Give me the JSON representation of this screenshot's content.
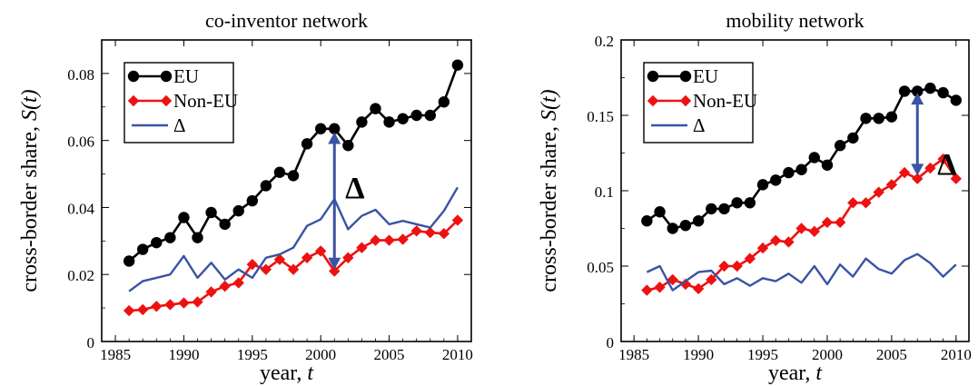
{
  "chart_data": [
    {
      "type": "line",
      "title": "co-inventor network",
      "xlabel_text": "year, ",
      "xlabel_var": "t",
      "ylabel_text": "cross-border share, ",
      "ylabel_var": "S(t)",
      "xlim": [
        1984,
        2011
      ],
      "ylim": [
        0,
        0.09
      ],
      "xticks": [
        1985,
        1990,
        1995,
        2000,
        2005,
        2010
      ],
      "xtick_labels": [
        "1985",
        "1990",
        "1995",
        "2000",
        "2005",
        "2010"
      ],
      "yticks": [
        0,
        0.02,
        0.04,
        0.06,
        0.08
      ],
      "ytick_labels": [
        "0",
        "0.02",
        "0.04",
        "0.06",
        "0.08"
      ],
      "grid": false,
      "legend": "top-left",
      "x": [
        1986,
        1987,
        1988,
        1989,
        1990,
        1991,
        1992,
        1993,
        1994,
        1995,
        1996,
        1997,
        1998,
        1999,
        2000,
        2001,
        2002,
        2003,
        2004,
        2005,
        2006,
        2007,
        2008,
        2009,
        2010
      ],
      "series": [
        {
          "name": "EU",
          "color": "#000000",
          "marker": "circle",
          "values": [
            0.024,
            0.0275,
            0.0295,
            0.031,
            0.037,
            0.031,
            0.0385,
            0.035,
            0.039,
            0.042,
            0.0465,
            0.0505,
            0.0495,
            0.059,
            0.0635,
            0.0635,
            0.0585,
            0.0655,
            0.0695,
            0.0655,
            0.0665,
            0.0675,
            0.0675,
            0.0715,
            0.0825
          ]
        },
        {
          "name": "Non-EU",
          "color": "#ee1111",
          "marker": "diamond",
          "values": [
            0.0092,
            0.0095,
            0.0105,
            0.011,
            0.0115,
            0.0118,
            0.0148,
            0.0165,
            0.0175,
            0.023,
            0.0215,
            0.0245,
            0.0215,
            0.025,
            0.027,
            0.021,
            0.025,
            0.028,
            0.0302,
            0.0302,
            0.0305,
            0.033,
            0.0325,
            0.0322,
            0.0362
          ]
        },
        {
          "name": "Δ",
          "color": "#3a53a4",
          "marker": "none",
          "values": [
            0.015,
            0.018,
            0.019,
            0.02,
            0.0255,
            0.019,
            0.0235,
            0.0185,
            0.0215,
            0.019,
            0.025,
            0.026,
            0.028,
            0.0345,
            0.0365,
            0.0425,
            0.0335,
            0.0375,
            0.0393,
            0.035,
            0.036,
            0.035,
            0.034,
            0.039,
            0.046
          ]
        }
      ],
      "annotation": {
        "label": "Δ",
        "x": 2001,
        "y_top": 0.0625,
        "y_bottom": 0.0215
      }
    },
    {
      "type": "line",
      "title": "mobility network",
      "xlabel_text": "year, ",
      "xlabel_var": "t",
      "ylabel_text": "cross-border share, ",
      "ylabel_var": "S(t)",
      "xlim": [
        1984,
        2011
      ],
      "ylim": [
        0,
        0.2
      ],
      "xticks": [
        1985,
        1990,
        1995,
        2000,
        2005,
        2010
      ],
      "xtick_labels": [
        "1985",
        "1990",
        "1995",
        "2000",
        "2005",
        "2010"
      ],
      "yticks": [
        0,
        0.05,
        0.1,
        0.15,
        0.2
      ],
      "ytick_labels": [
        "0",
        "0.05",
        "0.1",
        "0.15",
        "0.2"
      ],
      "grid": false,
      "legend": "top-left",
      "x": [
        1986,
        1987,
        1988,
        1989,
        1990,
        1991,
        1992,
        1993,
        1994,
        1995,
        1996,
        1997,
        1998,
        1999,
        2000,
        2001,
        2002,
        2003,
        2004,
        2005,
        2006,
        2007,
        2008,
        2009,
        2010
      ],
      "series": [
        {
          "name": "EU",
          "color": "#000000",
          "marker": "circle",
          "values": [
            0.08,
            0.086,
            0.075,
            0.077,
            0.08,
            0.088,
            0.088,
            0.092,
            0.092,
            0.104,
            0.107,
            0.112,
            0.114,
            0.122,
            0.117,
            0.13,
            0.135,
            0.148,
            0.148,
            0.149,
            0.166,
            0.166,
            0.168,
            0.165,
            0.16
          ]
        },
        {
          "name": "Non-EU",
          "color": "#ee1111",
          "marker": "diamond",
          "values": [
            0.034,
            0.036,
            0.041,
            0.038,
            0.035,
            0.041,
            0.05,
            0.05,
            0.055,
            0.062,
            0.067,
            0.066,
            0.075,
            0.073,
            0.079,
            0.079,
            0.092,
            0.092,
            0.099,
            0.104,
            0.112,
            0.108,
            0.115,
            0.121,
            0.108
          ]
        },
        {
          "name": "Δ",
          "color": "#3a53a4",
          "marker": "none",
          "values": [
            0.046,
            0.05,
            0.034,
            0.04,
            0.046,
            0.047,
            0.038,
            0.042,
            0.037,
            0.042,
            0.04,
            0.045,
            0.039,
            0.05,
            0.038,
            0.051,
            0.043,
            0.055,
            0.048,
            0.045,
            0.054,
            0.058,
            0.052,
            0.043,
            0.051
          ]
        }
      ],
      "annotation": {
        "label": "Δ",
        "x": 2007,
        "y_top": 0.165,
        "y_bottom": 0.11
      }
    }
  ]
}
